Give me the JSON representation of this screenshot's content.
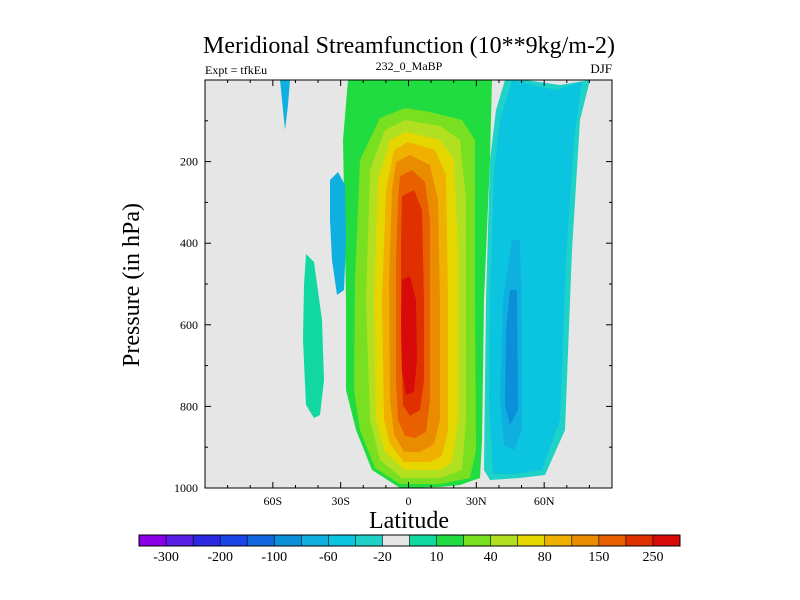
{
  "chart_data": {
    "type": "contour",
    "title": "Meridional Streamfunction (10**9kg/m-2)",
    "subtitle_left": "Expt = tfkEu",
    "subtitle_center": "232_0_MaBP",
    "subtitle_right": "DJF",
    "xlabel": "Latitude",
    "ylabel": "Pressure (in hPa)",
    "xlim": [
      -90,
      90
    ],
    "ylim": [
      1000,
      0
    ],
    "x_ticks": [
      -60,
      -30,
      0,
      30,
      60
    ],
    "x_tick_labels": [
      "60S",
      "30S",
      "0",
      "30N",
      "60N"
    ],
    "y_ticks": [
      200,
      400,
      600,
      800,
      1000
    ],
    "y_tick_labels": [
      "200",
      "400",
      "600",
      "800",
      "1000"
    ],
    "colorbar": {
      "labels": [
        "-300",
        "-200",
        "-100",
        "-60",
        "-20",
        "10",
        "40",
        "80",
        "150",
        "250"
      ],
      "colors": [
        "#8a00e6",
        "#5a1ee6",
        "#2a28e0",
        "#1a44e8",
        "#1268e0",
        "#0a8fd8",
        "#0fb0e0",
        "#0ac4e0",
        "#1ed2c8",
        "#e6e6e6",
        "#10d8a0",
        "#20dc40",
        "#78e020",
        "#b0e020",
        "#e6d600",
        "#f0b000",
        "#eb8c00",
        "#e86000",
        "#e03000",
        "#d80a0a"
      ]
    },
    "features": [
      {
        "name": "tropical positive cell",
        "sign": "positive",
        "lat_range": [
          -18,
          30
        ],
        "pressure_range": [
          50,
          990
        ],
        "peak_value": 250,
        "peak_lat": 0,
        "peak_pressure": 650
      },
      {
        "name": "northern negative cell",
        "sign": "negative",
        "lat_range": [
          30,
          78
        ],
        "pressure_range": [
          0,
          990
        ],
        "peak_value": -60,
        "peak_lat": 45,
        "peak_pressure": 600
      },
      {
        "name": "southern weak positive",
        "sign": "positive",
        "lat_range": [
          -48,
          -40
        ],
        "pressure_range": [
          420,
          820
        ],
        "peak_value": 10
      },
      {
        "name": "southern weak negative",
        "sign": "negative",
        "lat_range": [
          -37,
          -33
        ],
        "pressure_range": [
          260,
          460
        ],
        "peak_value": -20
      }
    ]
  }
}
